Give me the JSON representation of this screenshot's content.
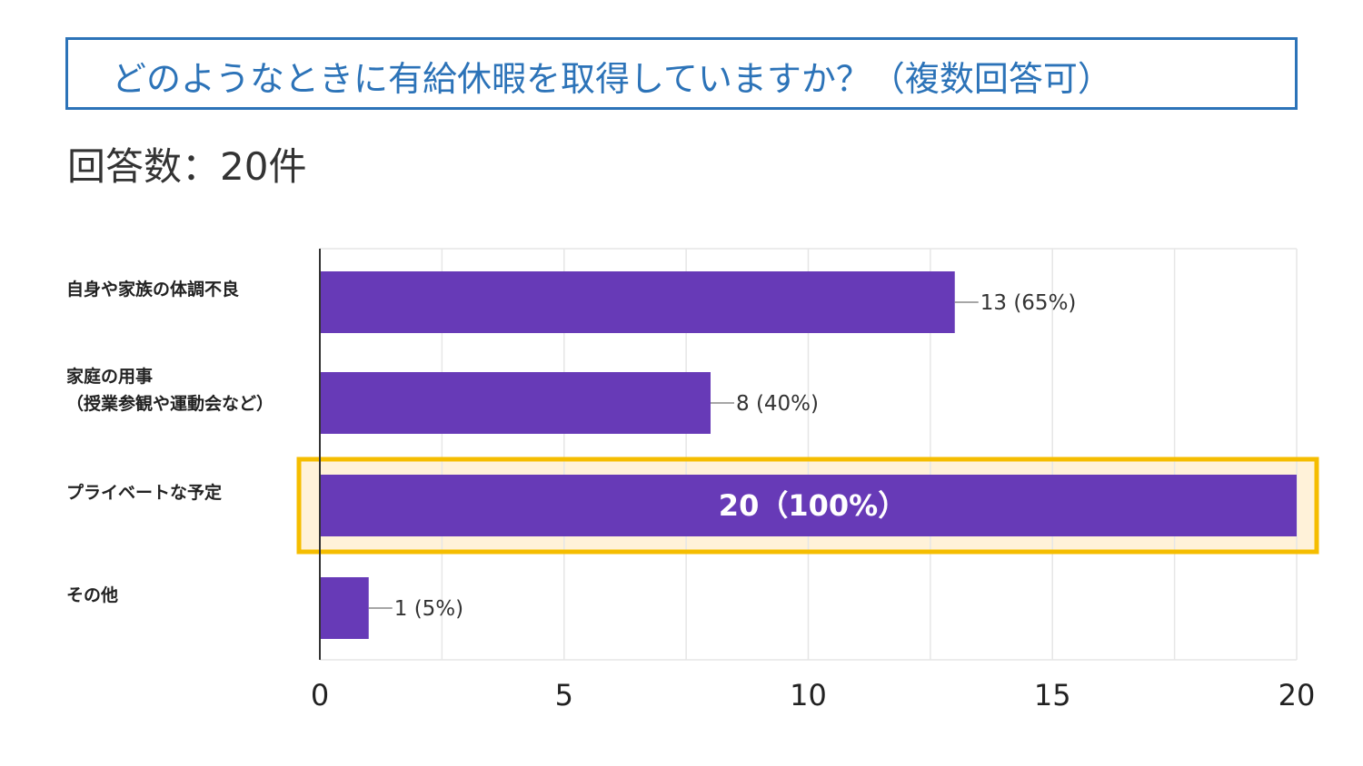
{
  "header": {
    "title": "どのようなときに有給休暇を取得していますか？（複数回答可）",
    "response_count": "回答数：20件"
  },
  "colors": {
    "title": "#2c73b8",
    "bar": "#673ab7",
    "highlight_border": "#f5bd00",
    "highlight_fill": "#fff2d9",
    "grid": "#e6e6e6"
  },
  "chart_data": {
    "type": "bar",
    "orientation": "horizontal",
    "categories": [
      [
        "自身や家族の体調不良"
      ],
      [
        "家庭の用事",
        "（授業参観や運動会など）"
      ],
      [
        "プライベートな予定"
      ],
      [
        "その他"
      ]
    ],
    "values": [
      13,
      8,
      20,
      1
    ],
    "data_labels": [
      "13 (65%)",
      "8 (40%)",
      "20（100%）",
      "1 (5%)"
    ],
    "highlighted_index": 2,
    "xlim": [
      0,
      20
    ],
    "x_ticks": [
      0,
      5,
      10,
      15,
      20
    ],
    "x_tick_labels": [
      "0",
      "5",
      "10",
      "15",
      "20"
    ],
    "grid": true,
    "xlabel": "",
    "ylabel": ""
  }
}
